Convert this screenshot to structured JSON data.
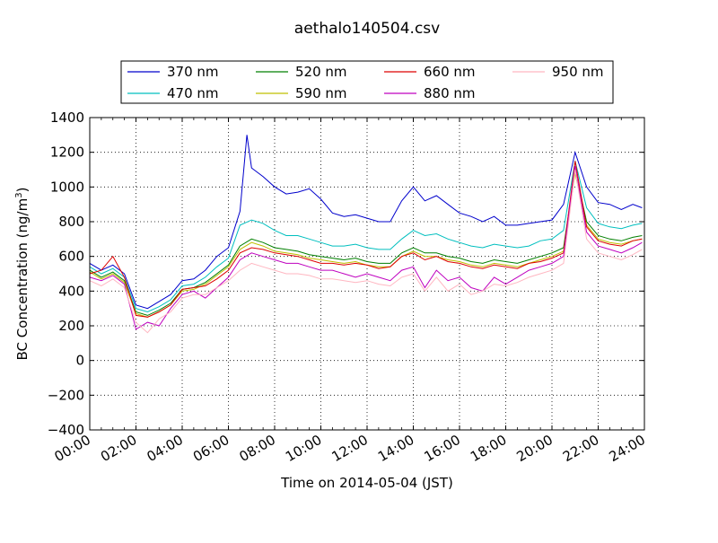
{
  "chart_data": {
    "type": "line",
    "title": "aethalo140504.csv",
    "xlabel": "Time on 2014-05-04 (JST)",
    "ylabel_main": "BC Concentration (ng/m",
    "ylabel_sup": "3",
    "ylabel_end": ")",
    "xlim": [
      0,
      24
    ],
    "ylim": [
      -400,
      1400
    ],
    "x_ticks": [
      {
        "value": 0,
        "label": "00:00"
      },
      {
        "value": 2,
        "label": "02:00"
      },
      {
        "value": 4,
        "label": "04:00"
      },
      {
        "value": 6,
        "label": "06:00"
      },
      {
        "value": 8,
        "label": "08:00"
      },
      {
        "value": 10,
        "label": "10:00"
      },
      {
        "value": 12,
        "label": "12:00"
      },
      {
        "value": 14,
        "label": "14:00"
      },
      {
        "value": 16,
        "label": "16:00"
      },
      {
        "value": 18,
        "label": "18:00"
      },
      {
        "value": 20,
        "label": "20:00"
      },
      {
        "value": 22,
        "label": "22:00"
      },
      {
        "value": 24,
        "label": "24:00"
      }
    ],
    "y_ticks": [
      {
        "value": -400,
        "label": "−400"
      },
      {
        "value": -200,
        "label": "−200"
      },
      {
        "value": 0,
        "label": "0"
      },
      {
        "value": 200,
        "label": "200"
      },
      {
        "value": 400,
        "label": "400"
      },
      {
        "value": 600,
        "label": "600"
      },
      {
        "value": 800,
        "label": "800"
      },
      {
        "value": 1000,
        "label": "1000"
      },
      {
        "value": 1200,
        "label": "1200"
      },
      {
        "value": 1400,
        "label": "1400"
      }
    ],
    "grid": true,
    "legend_position": "top",
    "series": [
      {
        "name": "370 nm",
        "color": "#0000cc",
        "x": [
          0,
          0.5,
          1,
          1.5,
          2,
          2.5,
          3,
          3.5,
          4,
          4.5,
          5,
          5.5,
          6,
          6.5,
          6.8,
          7,
          7.5,
          8,
          8.5,
          9,
          9.5,
          10,
          10.5,
          11,
          11.5,
          12,
          12.5,
          13,
          13.5,
          14,
          14.5,
          15,
          15.5,
          16,
          16.5,
          17,
          17.5,
          18,
          18.5,
          19,
          19.5,
          20,
          20.5,
          21,
          21.5,
          22,
          22.5,
          23,
          23.5,
          23.9
        ],
        "y": [
          560,
          520,
          550,
          500,
          320,
          300,
          340,
          380,
          460,
          470,
          520,
          600,
          650,
          860,
          1300,
          1110,
          1060,
          1000,
          960,
          970,
          990,
          930,
          850,
          830,
          840,
          820,
          800,
          800,
          920,
          1000,
          920,
          950,
          900,
          850,
          830,
          800,
          830,
          780,
          780,
          790,
          800,
          810,
          900,
          1200,
          1000,
          910,
          900,
          870,
          900,
          880
        ]
      },
      {
        "name": "470 nm",
        "color": "#00bfbf",
        "x": [
          0,
          0.5,
          1,
          1.5,
          2,
          2.5,
          3,
          3.5,
          4,
          4.5,
          5,
          5.5,
          6,
          6.5,
          7,
          7.5,
          8,
          8.5,
          9,
          9.5,
          10,
          10.5,
          11,
          11.5,
          12,
          12.5,
          13,
          13.5,
          14,
          14.5,
          15,
          15.5,
          16,
          16.5,
          17,
          17.5,
          18,
          18.5,
          19,
          19.5,
          20,
          20.5,
          21,
          21.5,
          22,
          22.5,
          23,
          23.5,
          23.9
        ],
        "y": [
          540,
          500,
          530,
          480,
          300,
          280,
          310,
          350,
          430,
          440,
          480,
          540,
          590,
          780,
          810,
          790,
          750,
          720,
          720,
          700,
          680,
          660,
          660,
          670,
          650,
          640,
          640,
          700,
          750,
          720,
          730,
          700,
          680,
          660,
          650,
          670,
          660,
          650,
          660,
          690,
          700,
          750,
          1150,
          880,
          790,
          770,
          760,
          780,
          790
        ]
      },
      {
        "name": "520 nm",
        "color": "#007f00",
        "x": [
          0,
          0.5,
          1,
          1.5,
          2,
          2.5,
          3,
          3.5,
          4,
          4.5,
          5,
          5.5,
          6,
          6.5,
          7,
          7.5,
          8,
          8.5,
          9,
          9.5,
          10,
          10.5,
          11,
          11.5,
          12,
          12.5,
          13,
          13.5,
          14,
          14.5,
          15,
          15.5,
          16,
          16.5,
          17,
          17.5,
          18,
          18.5,
          19,
          19.5,
          20,
          20.5,
          21,
          21.5,
          22,
          22.5,
          23,
          23.5,
          23.9
        ],
        "y": [
          520,
          480,
          510,
          460,
          280,
          260,
          290,
          330,
          410,
          420,
          450,
          500,
          550,
          660,
          700,
          680,
          650,
          640,
          630,
          610,
          600,
          590,
          580,
          590,
          570,
          560,
          560,
          620,
          650,
          620,
          620,
          600,
          590,
          570,
          560,
          580,
          570,
          560,
          580,
          600,
          620,
          650,
          1100,
          800,
          720,
          700,
          690,
          710,
          720
        ]
      },
      {
        "name": "590 nm",
        "color": "#bfbf00",
        "x": [
          0,
          0.5,
          1,
          1.5,
          2,
          2.5,
          3,
          3.5,
          4,
          4.5,
          5,
          5.5,
          6,
          6.5,
          7,
          7.5,
          8,
          8.5,
          9,
          9.5,
          10,
          10.5,
          11,
          11.5,
          12,
          12.5,
          13,
          13.5,
          14,
          14.5,
          15,
          15.5,
          16,
          16.5,
          17,
          17.5,
          18,
          18.5,
          19,
          19.5,
          20,
          20.5,
          21,
          21.5,
          22,
          22.5,
          23,
          23.5,
          23.9
        ],
        "y": [
          510,
          470,
          500,
          450,
          270,
          250,
          280,
          320,
          400,
          410,
          440,
          490,
          540,
          640,
          680,
          660,
          630,
          620,
          610,
          590,
          580,
          570,
          560,
          570,
          550,
          540,
          540,
          600,
          630,
          600,
          600,
          580,
          570,
          550,
          540,
          560,
          550,
          540,
          560,
          580,
          600,
          630,
          1080,
          780,
          700,
          680,
          670,
          690,
          700
        ]
      },
      {
        "name": "660 nm",
        "color": "#dd0000",
        "x": [
          0,
          0.5,
          1,
          1.5,
          2,
          2.5,
          3,
          3.5,
          4,
          4.5,
          5,
          5.5,
          6,
          6.5,
          7,
          7.5,
          8,
          8.5,
          9,
          9.5,
          10,
          10.5,
          11,
          11.5,
          12,
          12.5,
          13,
          13.5,
          14,
          14.5,
          15,
          15.5,
          16,
          16.5,
          17,
          17.5,
          18,
          18.5,
          19,
          19.5,
          20,
          20.5,
          21,
          21.5,
          22,
          22.5,
          23,
          23.5,
          23.9
        ],
        "y": [
          500,
          520,
          600,
          480,
          260,
          250,
          280,
          320,
          410,
          420,
          430,
          470,
          520,
          620,
          650,
          640,
          620,
          610,
          600,
          580,
          560,
          560,
          550,
          560,
          550,
          530,
          540,
          600,
          620,
          580,
          600,
          570,
          560,
          540,
          530,
          550,
          540,
          530,
          560,
          570,
          590,
          620,
          1150,
          770,
          690,
          670,
          660,
          690,
          700
        ]
      },
      {
        "name": "880 nm",
        "color": "#bf00bf",
        "x": [
          0,
          0.5,
          1,
          1.5,
          2,
          2.5,
          3,
          3.5,
          4,
          4.5,
          5,
          5.5,
          6,
          6.5,
          7,
          7.5,
          8,
          8.5,
          9,
          9.5,
          10,
          10.5,
          11,
          11.5,
          12,
          12.5,
          13,
          13.5,
          14,
          14.5,
          15,
          15.5,
          16,
          16.5,
          17,
          17.5,
          18,
          18.5,
          19,
          19.5,
          20,
          20.5,
          21,
          21.5,
          22,
          22.5,
          23,
          23.5,
          23.9
        ],
        "y": [
          480,
          460,
          490,
          440,
          180,
          220,
          200,
          300,
          380,
          400,
          360,
          420,
          480,
          580,
          620,
          600,
          580,
          560,
          560,
          540,
          520,
          520,
          500,
          480,
          500,
          480,
          460,
          520,
          540,
          420,
          520,
          460,
          480,
          420,
          400,
          480,
          440,
          480,
          520,
          540,
          560,
          600,
          1120,
          740,
          660,
          640,
          620,
          650,
          680
        ]
      },
      {
        "name": "950 nm",
        "color": "#ffb6c1",
        "x": [
          0,
          0.5,
          1,
          1.5,
          2,
          2.5,
          3,
          3.5,
          4,
          4.5,
          5,
          5.5,
          6,
          6.5,
          7,
          7.5,
          8,
          8.5,
          9,
          9.5,
          10,
          10.5,
          11,
          11.5,
          12,
          12.5,
          13,
          13.5,
          14,
          14.5,
          15,
          15.5,
          16,
          16.5,
          17,
          17.5,
          18,
          18.5,
          19,
          19.5,
          20,
          20.5,
          21,
          21.5,
          22,
          22.5,
          23,
          23.5,
          23.9
        ],
        "y": [
          460,
          430,
          470,
          420,
          220,
          160,
          240,
          280,
          360,
          380,
          380,
          420,
          460,
          520,
          560,
          540,
          520,
          500,
          500,
          490,
          470,
          470,
          460,
          450,
          460,
          440,
          430,
          480,
          500,
          400,
          480,
          400,
          440,
          380,
          400,
          440,
          430,
          450,
          480,
          500,
          520,
          560,
          1100,
          700,
          620,
          600,
          580,
          610,
          640
        ]
      }
    ]
  }
}
